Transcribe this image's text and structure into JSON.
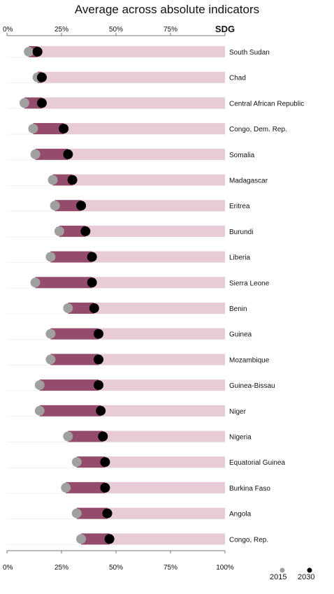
{
  "chart_data": {
    "type": "dumbbell",
    "title": "Average across absolute indicators",
    "target_label": "SDG",
    "xlim": [
      0,
      100
    ],
    "ticks_top": [
      "0%",
      "25%",
      "50%",
      "75%"
    ],
    "ticks_bottom": [
      "0%",
      "25%",
      "50%",
      "75%",
      "100%"
    ],
    "target_value": 100,
    "grid": false,
    "legend": "bottom-right",
    "series": [
      {
        "name": "2015",
        "color": "#a0a0a0"
      },
      {
        "name": "2030",
        "color": "#000000"
      }
    ],
    "colors": {
      "progress": "#954b6c",
      "remaining": "#e7ccd8"
    },
    "rows": [
      {
        "country": "South Sudan",
        "v2015": 10,
        "v2030": 14
      },
      {
        "country": "Chad",
        "v2015": 14,
        "v2030": 16
      },
      {
        "country": "Central African Republic",
        "v2015": 8,
        "v2030": 16
      },
      {
        "country": "Congo, Dem. Rep.",
        "v2015": 12,
        "v2030": 26
      },
      {
        "country": "Somalia",
        "v2015": 13,
        "v2030": 28
      },
      {
        "country": "Madagascar",
        "v2015": 21,
        "v2030": 30
      },
      {
        "country": "Eritrea",
        "v2015": 22,
        "v2030": 34
      },
      {
        "country": "Burundi",
        "v2015": 24,
        "v2030": 36
      },
      {
        "country": "Liberia",
        "v2015": 20,
        "v2030": 39
      },
      {
        "country": "Sierra Leone",
        "v2015": 13,
        "v2030": 39
      },
      {
        "country": "Benin",
        "v2015": 28,
        "v2030": 40
      },
      {
        "country": "Guinea",
        "v2015": 20,
        "v2030": 42
      },
      {
        "country": "Mozambique",
        "v2015": 20,
        "v2030": 42
      },
      {
        "country": "Guinea-Bissau",
        "v2015": 15,
        "v2030": 42
      },
      {
        "country": "Niger",
        "v2015": 15,
        "v2030": 43
      },
      {
        "country": "Nigeria",
        "v2015": 28,
        "v2030": 44
      },
      {
        "country": "Equatorial Guinea",
        "v2015": 32,
        "v2030": 45
      },
      {
        "country": "Burkina Faso",
        "v2015": 27,
        "v2030": 45
      },
      {
        "country": "Angola",
        "v2015": 32,
        "v2030": 46
      },
      {
        "country": "Congo, Rep.",
        "v2015": 34,
        "v2030": 47
      }
    ]
  }
}
